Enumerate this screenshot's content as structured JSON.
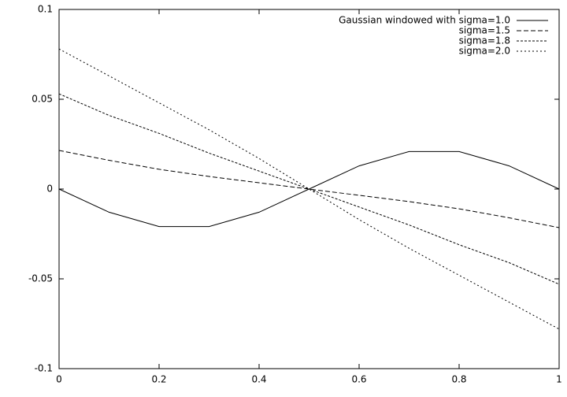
{
  "chart_data": {
    "type": "line",
    "x": [
      0,
      0.1,
      0.2,
      0.3,
      0.4,
      0.5,
      0.6,
      0.7,
      0.8,
      0.9,
      1
    ],
    "series": [
      {
        "name": "Gaussian windowed with sigma=1.0",
        "color": "#000000",
        "dash": "none",
        "values": [
          0,
          -0.0129,
          -0.0209,
          -0.0209,
          -0.0129,
          0,
          0.0129,
          0.0209,
          0.0209,
          0.0129,
          0
        ]
      },
      {
        "name": "sigma=1.5",
        "color": "#000000",
        "dash": "6 3",
        "values": [
          0.0215,
          0.016,
          0.011,
          0.007,
          0.0035,
          0,
          -0.0035,
          -0.007,
          -0.011,
          -0.016,
          -0.0215
        ]
      },
      {
        "name": "sigma=1.8",
        "color": "#000000",
        "dash": "3 2",
        "values": [
          0.053,
          0.041,
          0.031,
          0.02,
          0.01,
          0,
          -0.01,
          -0.02,
          -0.031,
          -0.041,
          -0.053
        ]
      },
      {
        "name": "sigma=2.0",
        "color": "#000000",
        "dash": "2 3",
        "values": [
          0.078,
          0.063,
          0.048,
          0.033,
          0.017,
          0,
          -0.017,
          -0.033,
          -0.048,
          -0.063,
          -0.078
        ]
      }
    ],
    "xlim": [
      0,
      1
    ],
    "xticks": [
      0,
      0.2,
      0.4,
      0.6,
      0.8,
      1
    ],
    "ylim": [
      -0.1,
      0.1
    ],
    "yticks": [
      -0.1,
      -0.05,
      0,
      0.05,
      0.1
    ],
    "grid": false,
    "legend": "top-right"
  }
}
